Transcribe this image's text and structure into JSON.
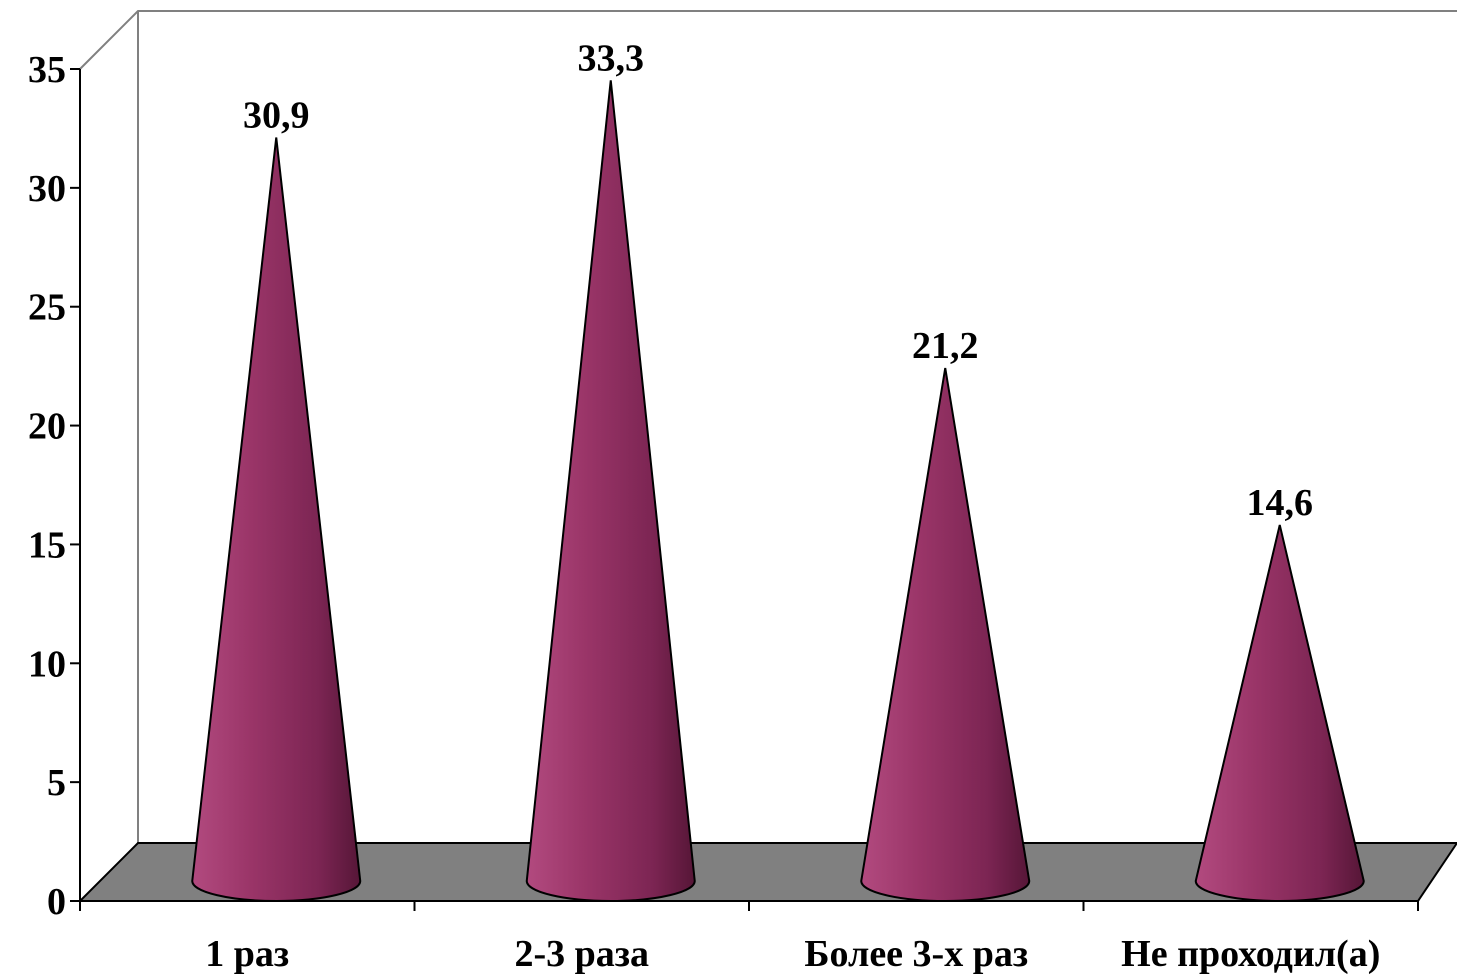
{
  "chart_data": {
    "type": "bar",
    "bar_shape": "cone",
    "categories": [
      "1 раз",
      "2-3 раза",
      "Более 3-х раз",
      "Не проходил(а)"
    ],
    "values": [
      30.9,
      33.3,
      21.2,
      14.6
    ],
    "data_labels": [
      "30,9",
      "33,3",
      "21,2",
      "14,6"
    ],
    "y_ticks": [
      "0",
      "5",
      "10",
      "15",
      "20",
      "25",
      "30",
      "35"
    ],
    "ylim": [
      0,
      35
    ],
    "grid": false,
    "colors": {
      "bar": "#8e2f60",
      "bar_dark": "#5a1a3c",
      "floor": "#808080",
      "wall_line": "#808080",
      "axis": "#000000"
    }
  }
}
